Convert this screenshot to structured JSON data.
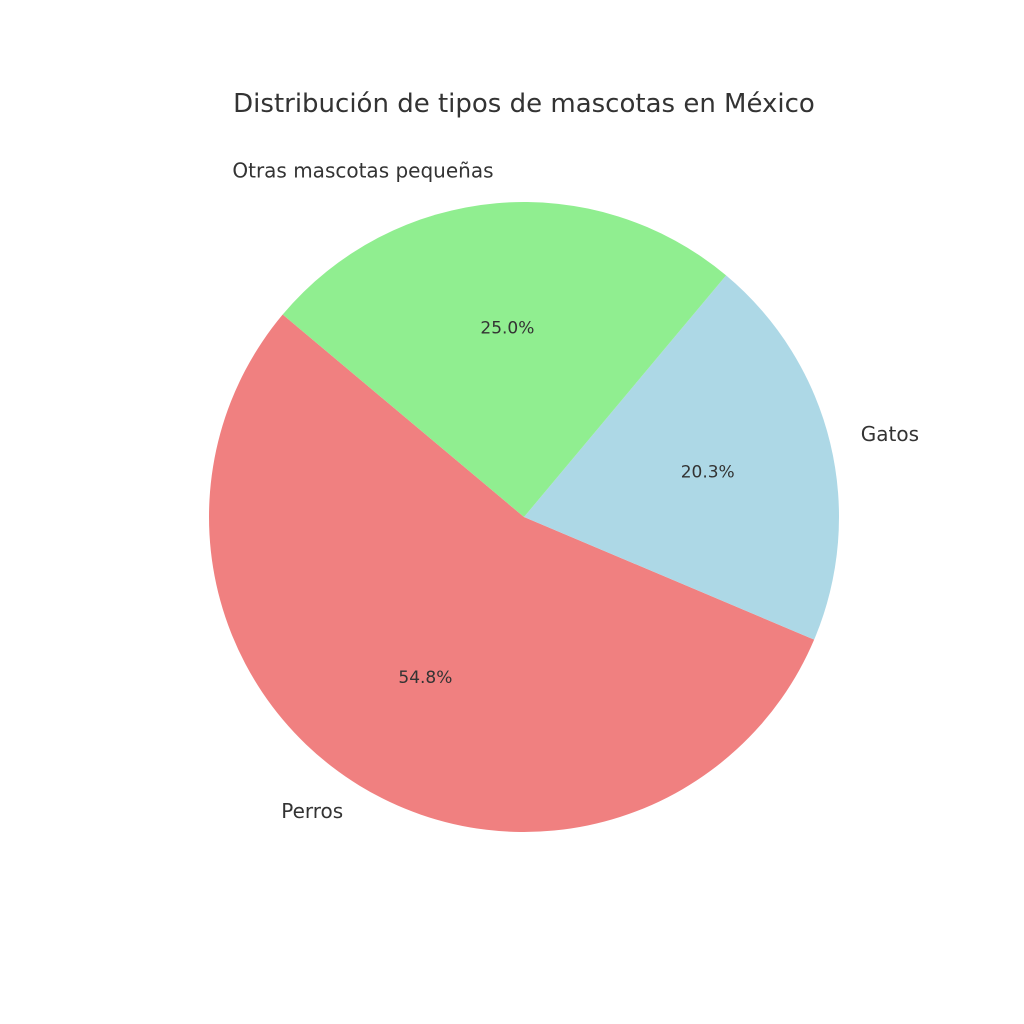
{
  "chart_data": {
    "type": "pie",
    "title": "Distribución de tipos de mascotas en México",
    "categories": [
      "Perros",
      "Gatos",
      "Otras mascotas pequeñas"
    ],
    "values": [
      54.8,
      20.3,
      25.0
    ],
    "value_labels": [
      "54.8%",
      "20.3%",
      "25.0%"
    ],
    "colors": [
      "#F08080",
      "#ADD8E6",
      "#90EE90"
    ],
    "start_angle_degrees": 140,
    "direction": "counterclockwise",
    "legend": "none"
  }
}
